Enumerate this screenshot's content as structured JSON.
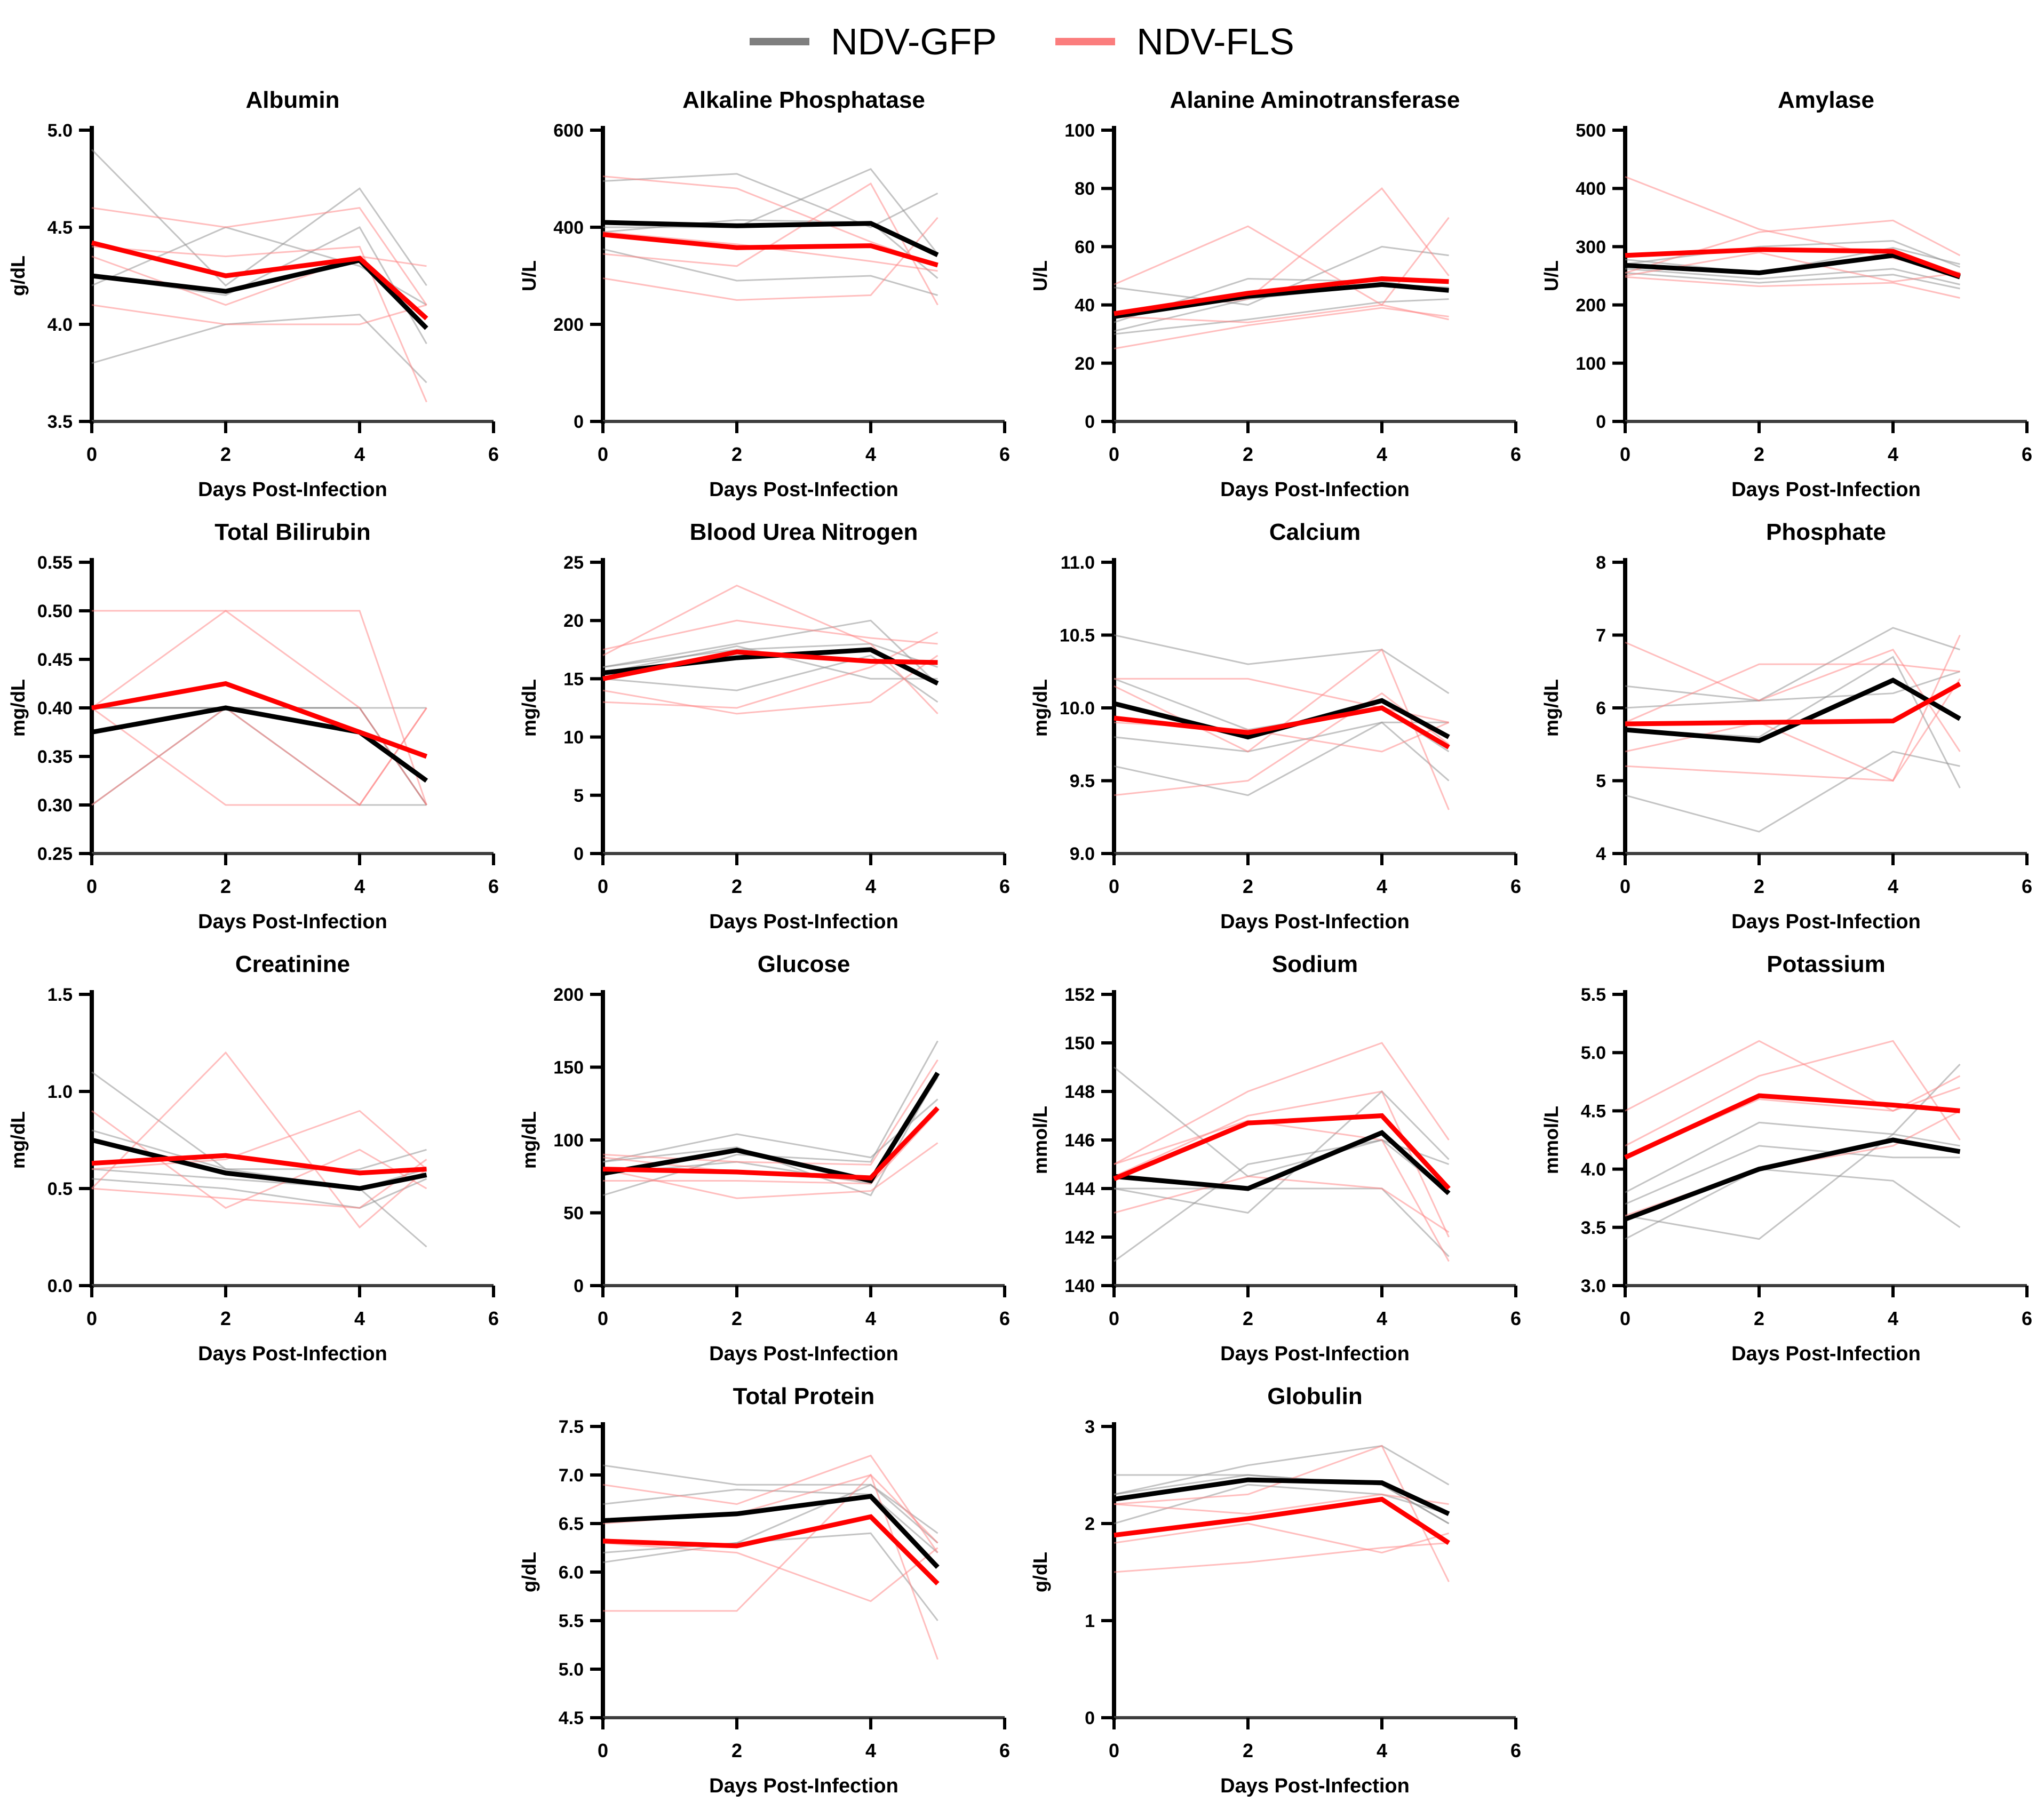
{
  "legend": {
    "items": [
      {
        "id": "gfp",
        "label": "NDV-GFP",
        "color": "#7f7f7f"
      },
      {
        "id": "fls",
        "label": "NDV-FLS",
        "color": "#fb7d7d"
      }
    ]
  },
  "styles": {
    "gfp_mean": "#000000",
    "fls_mean": "#ff0000",
    "gfp_individual": "#8a8a8a",
    "fls_individual": "#ff7d7d",
    "axis_color": "#000000"
  },
  "chart_data": {
    "type": "line",
    "x": [
      0,
      2,
      4,
      5
    ],
    "xlim": [
      0,
      6
    ],
    "xticks": [
      0,
      2,
      4,
      6
    ],
    "xlabel": "Days Post-Infection",
    "legend_position": "top-center",
    "grid": false,
    "series_names": [
      "NDV-GFP",
      "NDV-FLS"
    ],
    "panels": [
      {
        "slug": "albumin",
        "title": "Albumin",
        "ylabel": "g/dL",
        "ylim": [
          3.5,
          5.0
        ],
        "yticks": [
          3.5,
          4.0,
          4.5,
          5.0
        ],
        "ydecimals": 1,
        "gfp_mean": [
          4.25,
          4.17,
          4.33,
          3.98
        ],
        "fls_mean": [
          4.42,
          4.25,
          4.34,
          4.03
        ],
        "gfp_individuals": [
          [
            4.9,
            4.2,
            4.7,
            4.2
          ],
          [
            4.2,
            4.5,
            4.3,
            4.1
          ],
          [
            4.25,
            4.15,
            4.5,
            3.9
          ],
          [
            3.8,
            4.0,
            4.05,
            3.7
          ]
        ],
        "fls_individuals": [
          [
            4.6,
            4.5,
            4.6,
            4.1
          ],
          [
            4.4,
            4.35,
            4.4,
            3.6
          ],
          [
            4.35,
            4.1,
            4.35,
            4.3
          ],
          [
            4.1,
            4.0,
            4.0,
            4.1
          ]
        ]
      },
      {
        "slug": "alkaline-phosphatase",
        "title": "Alkaline Phosphatase",
        "ylabel": "U/L",
        "ylim": [
          0,
          600
        ],
        "yticks": [
          0,
          200,
          400,
          600
        ],
        "ydecimals": 0,
        "gfp_mean": [
          410,
          403,
          408,
          343
        ],
        "fls_mean": [
          385,
          358,
          362,
          322
        ],
        "gfp_individuals": [
          [
            495,
            510,
            400,
            470
          ],
          [
            400,
            400,
            520,
            345
          ],
          [
            355,
            290,
            300,
            260
          ],
          [
            390,
            415,
            410,
            295
          ]
        ],
        "fls_individuals": [
          [
            505,
            480,
            370,
            320
          ],
          [
            345,
            320,
            490,
            240
          ],
          [
            295,
            250,
            260,
            420
          ],
          [
            390,
            365,
            330,
            310
          ]
        ]
      },
      {
        "slug": "alanine-aminotransferase",
        "title": "Alanine Aminotransferase",
        "ylabel": "U/L",
        "ylim": [
          0,
          100
        ],
        "yticks": [
          0,
          20,
          40,
          60,
          80,
          100
        ],
        "ydecimals": 0,
        "gfp_mean": [
          36,
          43,
          47,
          45
        ],
        "fls_mean": [
          37,
          44,
          49,
          48
        ],
        "gfp_individuals": [
          [
            46,
            40,
            60,
            57
          ],
          [
            31,
            42,
            47,
            46
          ],
          [
            30,
            35,
            41,
            42
          ],
          [
            34,
            49,
            48,
            45
          ]
        ],
        "fls_individuals": [
          [
            47,
            67,
            40,
            70
          ],
          [
            37,
            42,
            80,
            50
          ],
          [
            25,
            33,
            39,
            36
          ],
          [
            36,
            34,
            40,
            35
          ]
        ]
      },
      {
        "slug": "amylase",
        "title": "Amylase",
        "ylabel": "U/L",
        "ylim": [
          0,
          500
        ],
        "yticks": [
          0,
          100,
          200,
          300,
          400,
          500
        ],
        "ydecimals": 0,
        "gfp_mean": [
          268,
          255,
          285,
          248
        ],
        "fls_mean": [
          285,
          295,
          292,
          250
        ],
        "gfp_individuals": [
          [
            270,
            300,
            310,
            265
          ],
          [
            262,
            245,
            262,
            235
          ],
          [
            255,
            238,
            252,
            228
          ],
          [
            278,
            255,
            298,
            270
          ]
        ],
        "fls_individuals": [
          [
            420,
            330,
            280,
            255
          ],
          [
            248,
            232,
            238,
            212
          ],
          [
            255,
            325,
            345,
            285
          ],
          [
            250,
            290,
            240,
            255
          ]
        ]
      },
      {
        "slug": "total-bilirubin",
        "title": "Total Bilirubin",
        "ylabel": "mg/dL",
        "ylim": [
          0.25,
          0.55
        ],
        "yticks": [
          0.25,
          0.3,
          0.35,
          0.4,
          0.45,
          0.5,
          0.55
        ],
        "ydecimals": 2,
        "gfp_mean": [
          0.375,
          0.4,
          0.375,
          0.325
        ],
        "fls_mean": [
          0.4,
          0.425,
          0.375,
          0.35
        ],
        "gfp_individuals": [
          [
            0.4,
            0.4,
            0.4,
            0.4
          ],
          [
            0.4,
            0.4,
            0.4,
            0.3
          ],
          [
            0.4,
            0.4,
            0.4,
            0.3
          ],
          [
            0.3,
            0.4,
            0.3,
            0.3
          ]
        ],
        "fls_individuals": [
          [
            0.5,
            0.5,
            0.5,
            0.3
          ],
          [
            0.4,
            0.5,
            0.4,
            0.3
          ],
          [
            0.4,
            0.3,
            0.3,
            0.4
          ],
          [
            0.3,
            0.4,
            0.3,
            0.4
          ]
        ]
      },
      {
        "slug": "blood-urea-nitrogen",
        "title": "Blood Urea Nitrogen",
        "ylabel": "mg/dL",
        "ylim": [
          0,
          25
        ],
        "yticks": [
          0,
          5,
          10,
          15,
          20,
          25
        ],
        "ydecimals": 0,
        "gfp_mean": [
          15.5,
          16.8,
          17.5,
          14.6
        ],
        "fls_mean": [
          15.0,
          17.3,
          16.5,
          16.4
        ],
        "gfp_individuals": [
          [
            16,
            18,
            20,
            14.5
          ],
          [
            16,
            17.5,
            18,
            16
          ],
          [
            15,
            14,
            17,
            13
          ],
          [
            15.5,
            17.8,
            15,
            15
          ]
        ],
        "fls_individuals": [
          [
            17,
            23,
            18,
            12
          ],
          [
            17.5,
            20,
            18.5,
            18
          ],
          [
            14,
            12,
            13,
            17
          ],
          [
            13,
            12.5,
            16,
            19
          ]
        ]
      },
      {
        "slug": "calcium",
        "title": "Calcium",
        "ylabel": "mg/dL",
        "ylim": [
          9.0,
          11.0
        ],
        "yticks": [
          9.0,
          9.5,
          10.0,
          10.5,
          11.0
        ],
        "ydecimals": 1,
        "gfp_mean": [
          10.03,
          9.8,
          10.05,
          9.8
        ],
        "fls_mean": [
          9.93,
          9.83,
          10.0,
          9.73
        ],
        "gfp_individuals": [
          [
            10.5,
            10.3,
            10.4,
            10.1
          ],
          [
            10.2,
            9.85,
            10.0,
            9.7
          ],
          [
            9.8,
            9.7,
            9.9,
            9.9
          ],
          [
            9.6,
            9.4,
            9.9,
            9.5
          ]
        ],
        "fls_individuals": [
          [
            10.2,
            10.2,
            10.0,
            9.9
          ],
          [
            10.15,
            9.7,
            10.4,
            9.3
          ],
          [
            9.9,
            9.85,
            9.7,
            9.9
          ],
          [
            9.4,
            9.5,
            10.1,
            9.75
          ]
        ]
      },
      {
        "slug": "phosphate",
        "title": "Phosphate",
        "ylabel": "mg/dL",
        "ylim": [
          4,
          8
        ],
        "yticks": [
          4,
          5,
          6,
          7,
          8
        ],
        "ydecimals": 0,
        "gfp_mean": [
          5.7,
          5.55,
          6.38,
          5.85
        ],
        "fls_mean": [
          5.78,
          5.8,
          5.82,
          6.33
        ],
        "gfp_individuals": [
          [
            6.3,
            6.1,
            6.2,
            6.5
          ],
          [
            6.0,
            6.1,
            7.1,
            6.8
          ],
          [
            5.7,
            5.6,
            6.7,
            4.9
          ],
          [
            4.8,
            4.3,
            5.4,
            5.2
          ]
        ],
        "fls_individuals": [
          [
            6.9,
            6.1,
            6.8,
            5.4
          ],
          [
            5.8,
            6.6,
            6.6,
            6.5
          ],
          [
            5.4,
            5.8,
            5.0,
            7.0
          ],
          [
            5.2,
            5.1,
            5.0,
            6.4
          ]
        ]
      },
      {
        "slug": "creatinine",
        "title": "Creatinine",
        "ylabel": "mg/dL",
        "ylim": [
          0.0,
          1.5
        ],
        "yticks": [
          0.0,
          0.5,
          1.0,
          1.5
        ],
        "ydecimals": 1,
        "gfp_mean": [
          0.75,
          0.58,
          0.5,
          0.57
        ],
        "fls_mean": [
          0.63,
          0.67,
          0.58,
          0.6
        ],
        "gfp_individuals": [
          [
            1.1,
            0.6,
            0.5,
            0.2
          ],
          [
            0.8,
            0.6,
            0.6,
            0.7
          ],
          [
            0.6,
            0.55,
            0.5,
            0.6
          ],
          [
            0.55,
            0.5,
            0.4,
            0.55
          ]
        ],
        "fls_individuals": [
          [
            0.9,
            0.4,
            0.7,
            0.5
          ],
          [
            0.5,
            1.2,
            0.3,
            0.6
          ],
          [
            0.6,
            0.65,
            0.9,
            0.6
          ],
          [
            0.5,
            0.45,
            0.4,
            0.65
          ]
        ]
      },
      {
        "slug": "glucose",
        "title": "Glucose",
        "ylabel": "mg/dL",
        "ylim": [
          0,
          200
        ],
        "yticks": [
          0,
          50,
          100,
          150,
          200
        ],
        "ydecimals": 0,
        "gfp_mean": [
          77,
          93,
          72,
          146
        ],
        "fls_mean": [
          80,
          78,
          74,
          122
        ],
        "gfp_individuals": [
          [
            62,
            90,
            85,
            168
          ],
          [
            85,
            104,
            88,
            128
          ],
          [
            85,
            95,
            62,
            145
          ],
          [
            77,
            85,
            70,
            143
          ]
        ],
        "fls_individuals": [
          [
            90,
            85,
            83,
            155
          ],
          [
            88,
            78,
            72,
            122
          ],
          [
            80,
            60,
            65,
            98
          ],
          [
            72,
            72,
            70,
            120
          ]
        ]
      },
      {
        "slug": "sodium",
        "title": "Sodium",
        "ylabel": "mmol/L",
        "ylim": [
          140,
          152
        ],
        "yticks": [
          140,
          142,
          144,
          146,
          148,
          150,
          152
        ],
        "ydecimals": 0,
        "gfp_mean": [
          144.5,
          144.0,
          146.3,
          143.8
        ],
        "fls_mean": [
          144.4,
          146.7,
          147.0,
          144.0
        ],
        "gfp_individuals": [
          [
            149,
            144.5,
            146,
            145
          ],
          [
            144,
            143,
            148,
            145.2
          ],
          [
            144,
            144,
            144,
            141.2
          ],
          [
            141,
            145,
            146,
            143.8
          ]
        ],
        "fls_individuals": [
          [
            145,
            148,
            150,
            146
          ],
          [
            144.5,
            147,
            148,
            142
          ],
          [
            143,
            144.5,
            144,
            142.2
          ],
          [
            145,
            146.8,
            146,
            141
          ]
        ]
      },
      {
        "slug": "potassium",
        "title": "Potassium",
        "ylabel": "mmol/L",
        "ylim": [
          3.0,
          5.5
        ],
        "yticks": [
          3.0,
          3.5,
          4.0,
          4.5,
          5.0,
          5.5
        ],
        "ydecimals": 1,
        "gfp_mean": [
          3.57,
          4.0,
          4.25,
          4.15
        ],
        "fls_mean": [
          4.1,
          4.63,
          4.55,
          4.5
        ],
        "gfp_individuals": [
          [
            3.8,
            4.4,
            4.3,
            4.2
          ],
          [
            3.7,
            4.2,
            4.1,
            4.1
          ],
          [
            3.6,
            3.4,
            4.3,
            4.9
          ],
          [
            3.4,
            4.0,
            3.9,
            3.5
          ]
        ],
        "fls_individuals": [
          [
            4.5,
            5.1,
            4.5,
            4.7
          ],
          [
            4.2,
            4.8,
            5.1,
            4.25
          ],
          [
            4.1,
            4.6,
            4.5,
            4.8
          ],
          [
            3.6,
            4.0,
            4.2,
            4.5
          ]
        ]
      },
      {
        "slug": "total-protein",
        "title": "Total Protein",
        "ylabel": "g/dL",
        "ylim": [
          4.5,
          7.5
        ],
        "yticks": [
          4.5,
          5.0,
          5.5,
          6.0,
          6.5,
          7.0,
          7.5
        ],
        "ydecimals": 1,
        "gfp_mean": [
          6.53,
          6.6,
          6.78,
          6.05
        ],
        "fls_mean": [
          6.32,
          6.27,
          6.57,
          5.88
        ],
        "gfp_individuals": [
          [
            7.1,
            6.9,
            6.9,
            6.4
          ],
          [
            6.7,
            6.85,
            6.8,
            6.2
          ],
          [
            6.2,
            6.3,
            6.9,
            6.3
          ],
          [
            6.1,
            6.3,
            6.4,
            5.5
          ]
        ],
        "fls_individuals": [
          [
            6.9,
            6.7,
            7.2,
            6.2
          ],
          [
            6.5,
            6.6,
            7.0,
            6.3
          ],
          [
            5.6,
            5.6,
            7.0,
            5.1
          ],
          [
            6.3,
            6.2,
            5.7,
            6.25
          ]
        ]
      },
      {
        "slug": "globulin",
        "title": "Globulin",
        "ylabel": "g/dL",
        "ylim": [
          0,
          3
        ],
        "yticks": [
          0,
          1,
          2,
          3
        ],
        "ydecimals": 0,
        "gfp_mean": [
          2.25,
          2.45,
          2.42,
          2.1
        ],
        "fls_mean": [
          1.88,
          2.05,
          2.25,
          1.8
        ],
        "gfp_individuals": [
          [
            2.5,
            2.5,
            2.4,
            2.0
          ],
          [
            2.3,
            2.6,
            2.8,
            2.4
          ],
          [
            2.3,
            2.5,
            2.4,
            2.0
          ],
          [
            2.0,
            2.4,
            2.3,
            2.1
          ]
        ],
        "fls_individuals": [
          [
            2.2,
            2.3,
            2.8,
            1.4
          ],
          [
            2.2,
            2.1,
            2.3,
            2.2
          ],
          [
            1.8,
            2.0,
            1.7,
            1.9
          ],
          [
            1.5,
            1.6,
            1.75,
            1.8
          ]
        ]
      }
    ]
  }
}
